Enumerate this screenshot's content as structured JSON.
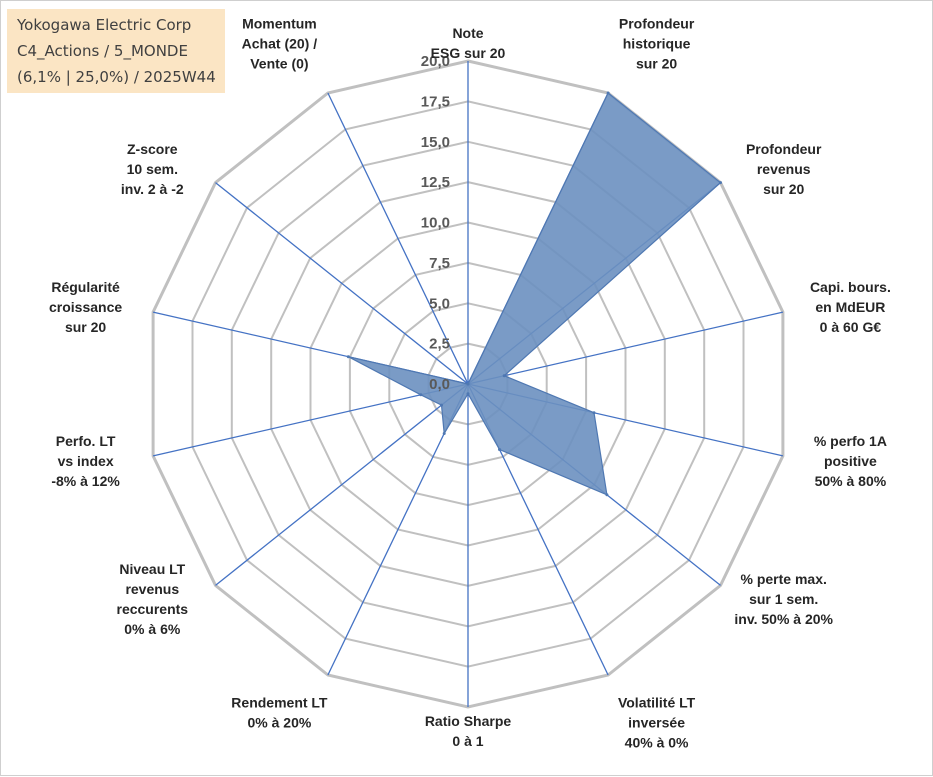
{
  "header": {
    "line1": "Yokogawa Electric Corp",
    "line2": "C4_Actions / 5_MONDE",
    "line3": "(6,1% | 25,0%) / 2025W44"
  },
  "chart_data": {
    "type": "radar",
    "title": "",
    "rmin": 0,
    "rmax": 20,
    "ticks": [
      "0,0",
      "2,5",
      "5,0",
      "7,5",
      "10,0",
      "12,5",
      "15,0",
      "17,5",
      "20,0"
    ],
    "axes": [
      {
        "label": [
          "Note",
          "ESG sur 20"
        ],
        "value": 0
      },
      {
        "label": [
          "Profondeur",
          "historique",
          "sur 20"
        ],
        "value": 20
      },
      {
        "label": [
          "Profondeur",
          "revenus",
          "sur 20"
        ],
        "value": 20
      },
      {
        "label": [
          "Capi. bours.",
          "en MdEUR",
          "0 à 60 G€"
        ],
        "value": 2.3
      },
      {
        "label": [
          "% perfo 1A",
          "positive",
          "50% à 80%"
        ],
        "value": 8.0
      },
      {
        "label": [
          "% perte max.",
          "sur 1 sem.",
          "inv. 50% à 20%"
        ],
        "value": 11.0
      },
      {
        "label": [
          "Volatilité LT",
          "inversée",
          "40% à 0%"
        ],
        "value": 4.5
      },
      {
        "label": [
          "Ratio Sharpe",
          "0 à 1"
        ],
        "value": 0.6
      },
      {
        "label": [
          "Rendement LT",
          "0% à 20%"
        ],
        "value": 3.4
      },
      {
        "label": [
          "Niveau LT",
          "revenus",
          "reccurents",
          "0% à 6%"
        ],
        "value": 2.1
      },
      {
        "label": [
          "Perfo. LT",
          "vs index",
          "-8% à 12%"
        ],
        "value": 3.0
      },
      {
        "label": [
          "Régularité",
          "croissance",
          "sur 20"
        ],
        "value": 7.6
      },
      {
        "label": [
          "Z-score",
          "10 sem.",
          "inv. 2 à -2"
        ],
        "value": 0
      },
      {
        "label": [
          "Momentum",
          "Achat (20) /",
          "Vente (0)"
        ],
        "value": 0
      }
    ],
    "colors": {
      "fill": "#6b90c0",
      "stroke": "#4f78b2",
      "grid": "#c0c0c0",
      "spoke": "#4472c4"
    },
    "grid": true,
    "legend": "none"
  }
}
